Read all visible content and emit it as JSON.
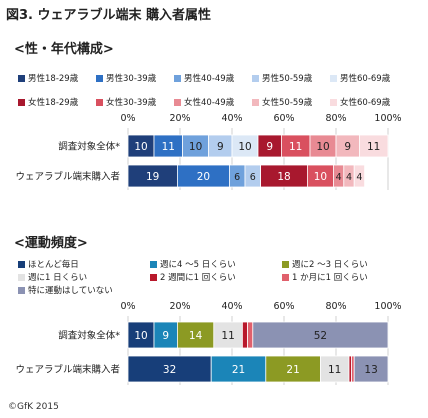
{
  "figure_title": "図3. ウェアラブル端末 購入者属性",
  "copyright": "©GfK 2015",
  "chart_data": [
    {
      "type": "bar",
      "orientation": "horizontal-stacked-100",
      "title": "<性・年代構成>",
      "categories": [
        "調査対象全体*",
        "ウェアラブル端末購入者"
      ],
      "xlim": [
        0,
        100
      ],
      "x_ticks": [
        "0%",
        "20%",
        "40%",
        "60%",
        "80%",
        "100%"
      ],
      "grid": true,
      "legend_position": "top",
      "series": [
        {
          "name": "男性18-29歳",
          "color": "#1f3f7a",
          "values": [
            10,
            19
          ]
        },
        {
          "name": "男性30-39歳",
          "color": "#2e70c4",
          "values": [
            11,
            20
          ]
        },
        {
          "name": "男性40-49歳",
          "color": "#6fa1dc",
          "values": [
            10,
            6
          ]
        },
        {
          "name": "男性50-59歳",
          "color": "#b3cdee",
          "values": [
            9,
            6
          ]
        },
        {
          "name": "男性60-69歳",
          "color": "#dce8f6",
          "values": [
            10,
            0
          ]
        },
        {
          "name": "女性18-29歳",
          "color": "#a8182e",
          "values": [
            9,
            18
          ]
        },
        {
          "name": "女性30-39歳",
          "color": "#d9505f",
          "values": [
            11,
            10
          ]
        },
        {
          "name": "女性40-49歳",
          "color": "#e88a93",
          "values": [
            10,
            4
          ]
        },
        {
          "name": "女性50-59歳",
          "color": "#f2b8bd",
          "values": [
            9,
            4
          ]
        },
        {
          "name": "女性60-69歳",
          "color": "#f9dcdf",
          "values": [
            11,
            4
          ]
        }
      ]
    },
    {
      "type": "bar",
      "orientation": "horizontal-stacked-100",
      "title": "<運動頻度>",
      "categories": [
        "調査対象全体*",
        "ウェアラブル端末購入者"
      ],
      "xlim": [
        0,
        100
      ],
      "x_ticks": [
        "0%",
        "20%",
        "40%",
        "60%",
        "80%",
        "100%"
      ],
      "grid": true,
      "legend_position": "top",
      "series": [
        {
          "name": "ほとんど毎日",
          "color": "#173e79",
          "values": [
            10,
            32
          ]
        },
        {
          "name": "週に4 ～5 日くらい",
          "color": "#1b85b8",
          "values": [
            9,
            21
          ]
        },
        {
          "name": "週に2 ～3 日くらい",
          "color": "#8c9a23",
          "values": [
            14,
            21
          ]
        },
        {
          "name": "週に1 日くらい",
          "color": "#e3e3e3",
          "values": [
            11,
            11
          ]
        },
        {
          "name": "2 週間に1 回くらい",
          "color": "#b8182b",
          "values": [
            2,
            1
          ]
        },
        {
          "name": "1 か月に1 回くらい",
          "color": "#e0606c",
          "values": [
            2,
            1
          ]
        },
        {
          "name": "特に運動はしていない",
          "color": "#8b92b3",
          "values": [
            52,
            13
          ]
        }
      ]
    }
  ]
}
